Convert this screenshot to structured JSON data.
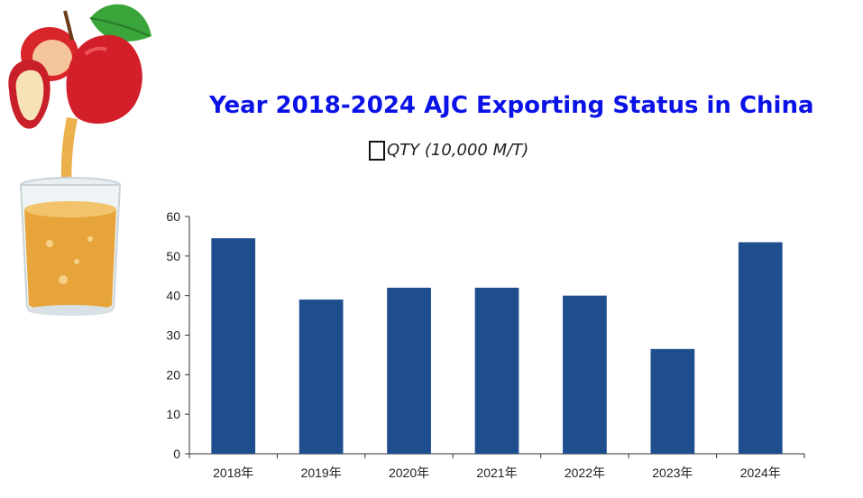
{
  "chart_data": {
    "type": "bar",
    "title": "Year 2018-2024 AJC Exporting Status in China",
    "legend": "QTY (10,000 M/T)",
    "categories": [
      "2018年",
      "2019年",
      "2020年",
      "2021年",
      "2022年",
      "2023年",
      "2024年"
    ],
    "values": [
      54.5,
      39,
      42,
      42,
      40,
      26.5,
      53.5
    ],
    "ylim": [
      0,
      60
    ],
    "yticks": [
      "0",
      "10",
      "20",
      "30",
      "40",
      "50",
      "60"
    ],
    "bar_color": "#1f4e8f",
    "grid": false,
    "legend_placement": "top-center"
  },
  "illustration": {
    "icons": [
      "apple-icon",
      "juice-glass-icon"
    ]
  }
}
